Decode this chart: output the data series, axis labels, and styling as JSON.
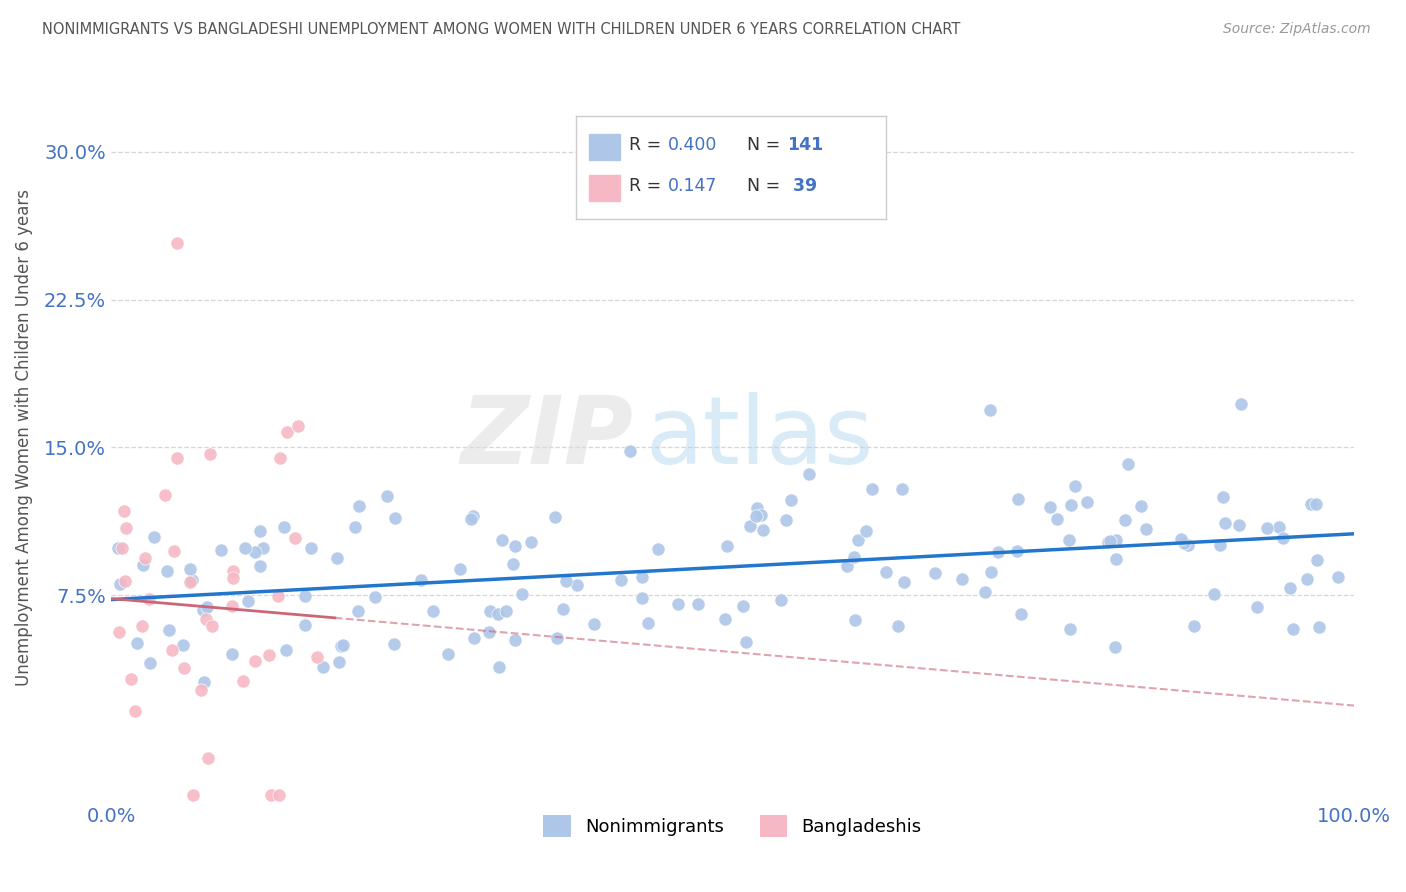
{
  "title": "NONIMMIGRANTS VS BANGLADESHI UNEMPLOYMENT AMONG WOMEN WITH CHILDREN UNDER 6 YEARS CORRELATION CHART",
  "source": "Source: ZipAtlas.com",
  "ylabel": "Unemployment Among Women with Children Under 6 years",
  "xlim": [
    0,
    100
  ],
  "ylim": [
    -3,
    34
  ],
  "xtick_labels": [
    "0.0%",
    "100.0%"
  ],
  "xtick_positions": [
    0,
    100
  ],
  "ytick_labels": [
    "7.5%",
    "15.0%",
    "22.5%",
    "30.0%"
  ],
  "ytick_positions": [
    7.5,
    15.0,
    22.5,
    30.0
  ],
  "nonimmigrant_color": "#aec6e8",
  "bangladeshi_color": "#f5b8c4",
  "trend_nonimmigrant_color": "#2277cc",
  "trend_bangladeshi_color": "#cc6677",
  "background_color": "#ffffff",
  "grid_color": "#cccccc",
  "title_color": "#555555",
  "axis_label_color": "#555555",
  "tick_label_color": "#4472c4",
  "R_nonimmigrant": 0.4,
  "N_nonimmigrant": 141,
  "R_bangladeshi": 0.147,
  "N_bangladeshi": 39,
  "seed_nonimm": 42,
  "seed_bangla": 77
}
